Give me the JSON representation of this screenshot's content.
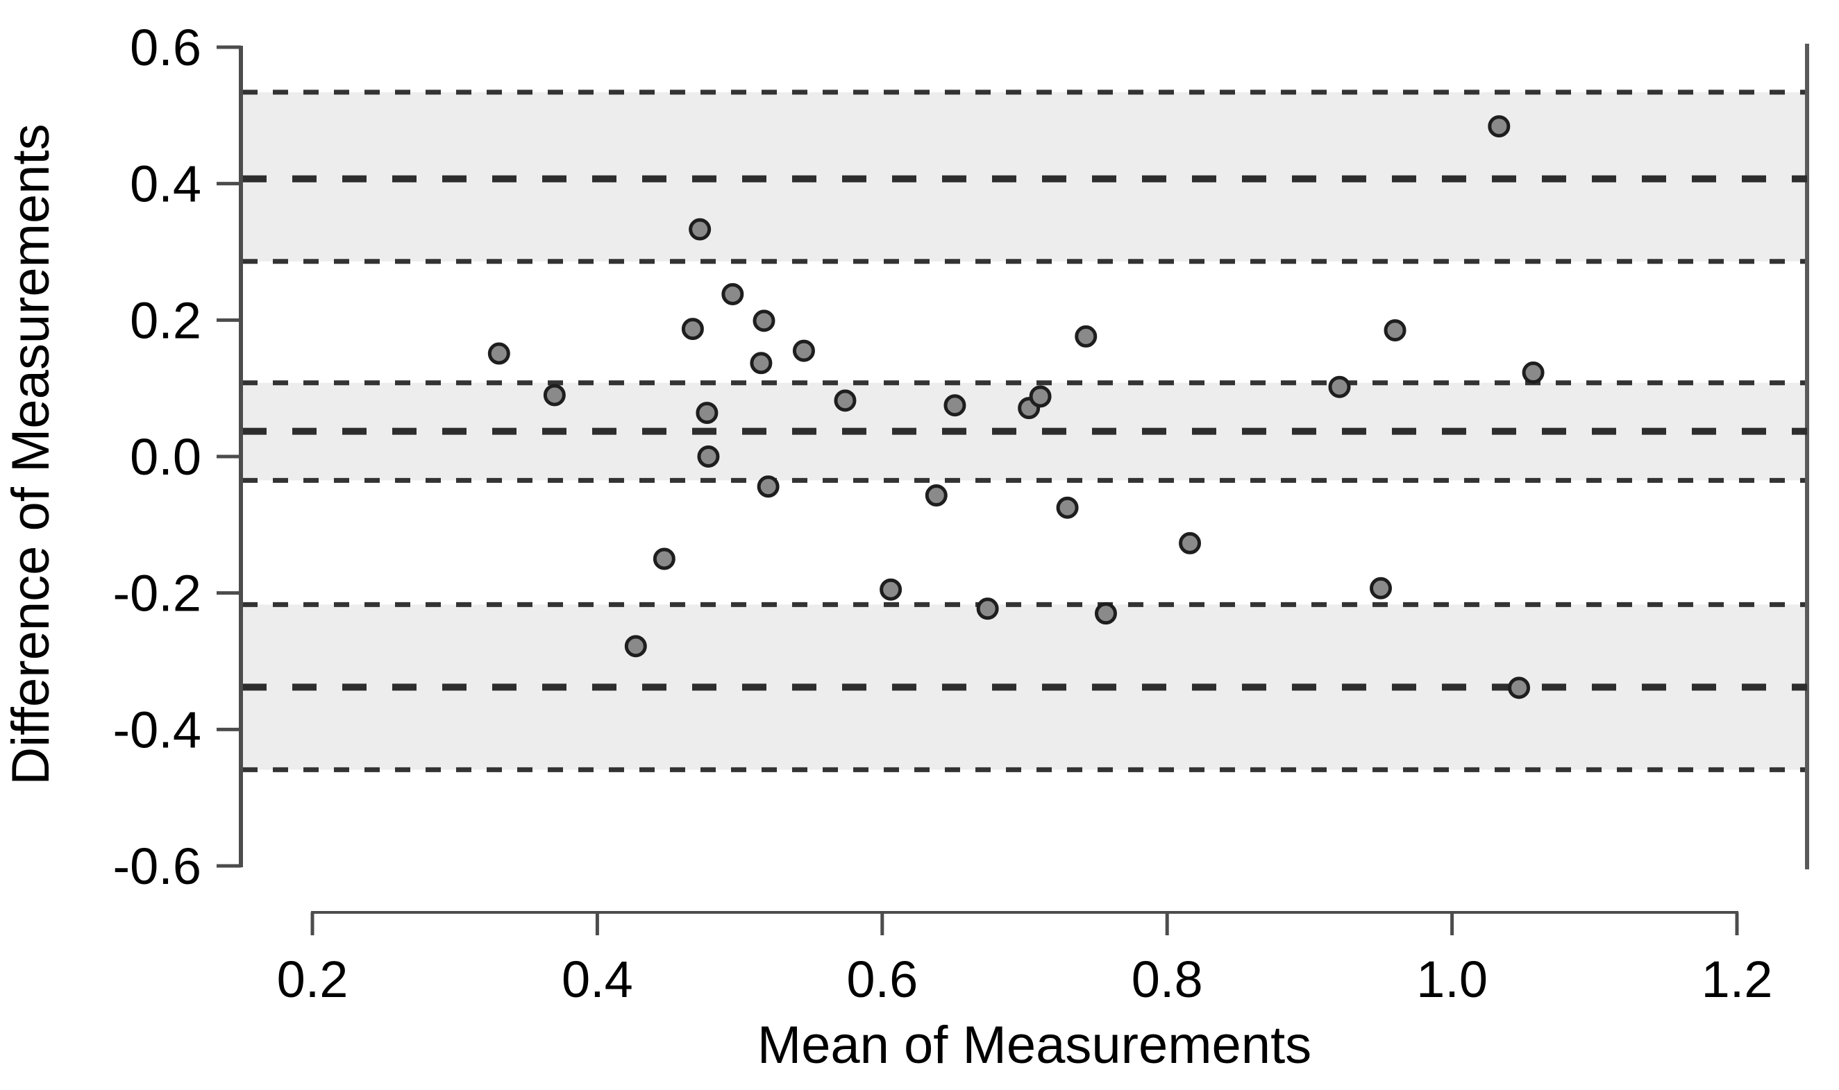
{
  "chart_data": {
    "type": "scatter",
    "subtype": "bland-altman",
    "title": "",
    "xlabel": "Mean of Measurements",
    "ylabel": "Difference of Measurements",
    "xlim": [
      0.15,
      1.25
    ],
    "ylim": [
      -0.62,
      0.62
    ],
    "grid": false,
    "legend": null,
    "x_ticks": [
      {
        "value": 0.2,
        "label": "0.2"
      },
      {
        "value": 0.4,
        "label": "0.4"
      },
      {
        "value": 0.6,
        "label": "0.6"
      },
      {
        "value": 0.8,
        "label": "0.8"
      },
      {
        "value": 1.0,
        "label": "1.0"
      },
      {
        "value": 1.2,
        "label": "1.2"
      }
    ],
    "y_ticks": [
      {
        "value": 0.6,
        "label": "0.6"
      },
      {
        "value": 0.4,
        "label": "0.4"
      },
      {
        "value": 0.2,
        "label": "0.2"
      },
      {
        "value": 0.0,
        "label": "0.0"
      },
      {
        "value": -0.2,
        "label": "-0.2"
      },
      {
        "value": -0.4,
        "label": "-0.4"
      },
      {
        "value": -0.6,
        "label": "-0.6"
      }
    ],
    "reference_lines": [
      {
        "name": "upper-limit-of-agreement",
        "value": 0.407,
        "ci": [
          0.286,
          0.534
        ]
      },
      {
        "name": "mean-difference",
        "value": 0.037,
        "ci": [
          -0.035,
          0.108
        ]
      },
      {
        "name": "lower-limit-of-agreement",
        "value": -0.338,
        "ci": [
          -0.459,
          -0.217
        ]
      }
    ],
    "points": [
      [
        0.472,
        0.333
      ],
      [
        0.495,
        0.238
      ],
      [
        0.517,
        0.199
      ],
      [
        0.467,
        0.187
      ],
      [
        0.545,
        0.155
      ],
      [
        0.331,
        0.151
      ],
      [
        0.515,
        0.137
      ],
      [
        0.743,
        0.176
      ],
      [
        0.37,
        0.09
      ],
      [
        0.574,
        0.082
      ],
      [
        0.477,
        0.064
      ],
      [
        0.651,
        0.075
      ],
      [
        0.703,
        0.071
      ],
      [
        0.711,
        0.088
      ],
      [
        0.478,
        0.0
      ],
      [
        1.033,
        0.484
      ],
      [
        0.96,
        0.185
      ],
      [
        1.057,
        0.123
      ],
      [
        0.921,
        0.102
      ],
      [
        0.52,
        -0.044
      ],
      [
        0.638,
        -0.057
      ],
      [
        0.73,
        -0.075
      ],
      [
        0.816,
        -0.127
      ],
      [
        0.447,
        -0.15
      ],
      [
        0.606,
        -0.195
      ],
      [
        0.674,
        -0.223
      ],
      [
        0.757,
        -0.23
      ],
      [
        0.427,
        -0.278
      ],
      [
        0.95,
        -0.193
      ],
      [
        1.047,
        -0.339
      ]
    ],
    "colors": {
      "background": "#ffffff",
      "band_fill": "#ededed",
      "heavy_dash": "#2d2d2d",
      "thin_dash": "#333333",
      "axis": "#4c4c4c",
      "right_border": "#5a5a5a",
      "point_fill": "#8a8a8a",
      "point_stroke": "#1e1e1e",
      "text": "#000000"
    }
  }
}
